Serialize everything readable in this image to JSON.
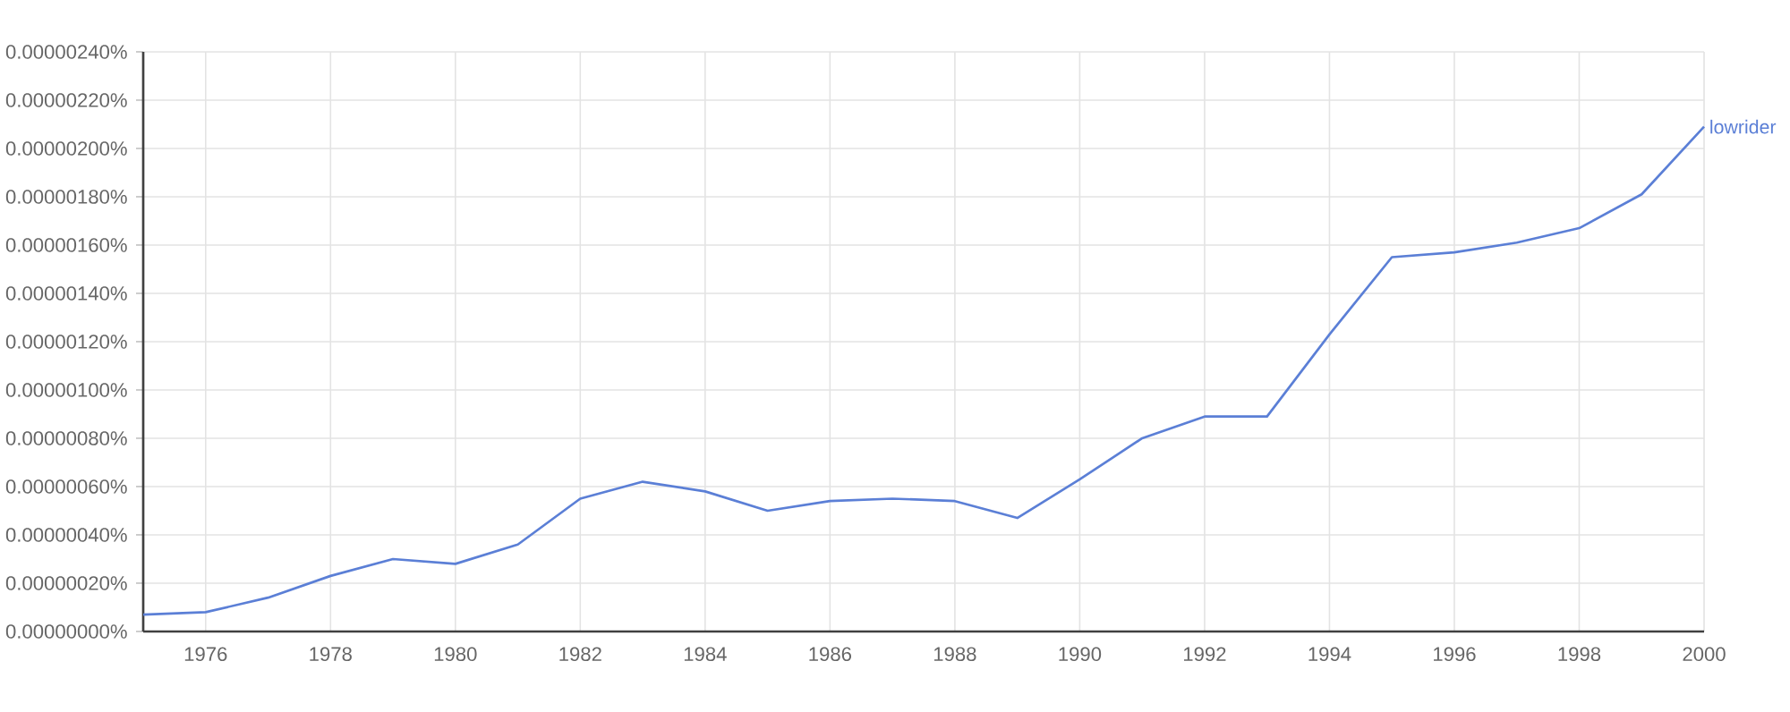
{
  "chart_data": {
    "type": "line",
    "x": [
      1975,
      1976,
      1977,
      1978,
      1979,
      1980,
      1981,
      1982,
      1983,
      1984,
      1985,
      1986,
      1987,
      1988,
      1989,
      1990,
      1991,
      1992,
      1993,
      1994,
      1995,
      1996,
      1997,
      1998,
      1999,
      2000
    ],
    "series": [
      {
        "name": "lowrider",
        "color": "#5b7fd6",
        "values": [
          7e-08,
          8e-08,
          1.4e-07,
          2.3e-07,
          3e-07,
          2.8e-07,
          3.6e-07,
          5.5e-07,
          6.2e-07,
          5.8e-07,
          5e-07,
          5.4e-07,
          5.5e-07,
          5.4e-07,
          4.7e-07,
          6.3e-07,
          8e-07,
          8.9e-07,
          8.9e-07,
          1.23e-06,
          1.55e-06,
          1.57e-06,
          1.61e-06,
          1.67e-06,
          1.81e-06,
          2.09e-06
        ]
      }
    ],
    "xlim": [
      1975,
      2000
    ],
    "xticks": [
      1976,
      1978,
      1980,
      1982,
      1984,
      1986,
      1988,
      1990,
      1992,
      1994,
      1996,
      1998,
      2000
    ],
    "ylim": [
      0,
      2.4e-06
    ],
    "yticks": [
      {
        "value": 0,
        "label": "0.00000000%"
      },
      {
        "value": 2e-07,
        "label": "0.00000020%"
      },
      {
        "value": 4e-07,
        "label": "0.00000040%"
      },
      {
        "value": 6e-07,
        "label": "0.00000060%"
      },
      {
        "value": 8e-07,
        "label": "0.00000080%"
      },
      {
        "value": 1e-06,
        "label": "0.00000100%"
      },
      {
        "value": 1.2e-06,
        "label": "0.00000120%"
      },
      {
        "value": 1.4e-06,
        "label": "0.00000140%"
      },
      {
        "value": 1.6e-06,
        "label": "0.00000160%"
      },
      {
        "value": 1.8e-06,
        "label": "0.00000180%"
      },
      {
        "value": 2e-06,
        "label": "0.00000200%"
      },
      {
        "value": 2.2e-06,
        "label": "0.00000220%"
      },
      {
        "value": 2.4e-06,
        "label": "0.00000240%"
      }
    ],
    "grid": true,
    "line_style": "solid"
  }
}
